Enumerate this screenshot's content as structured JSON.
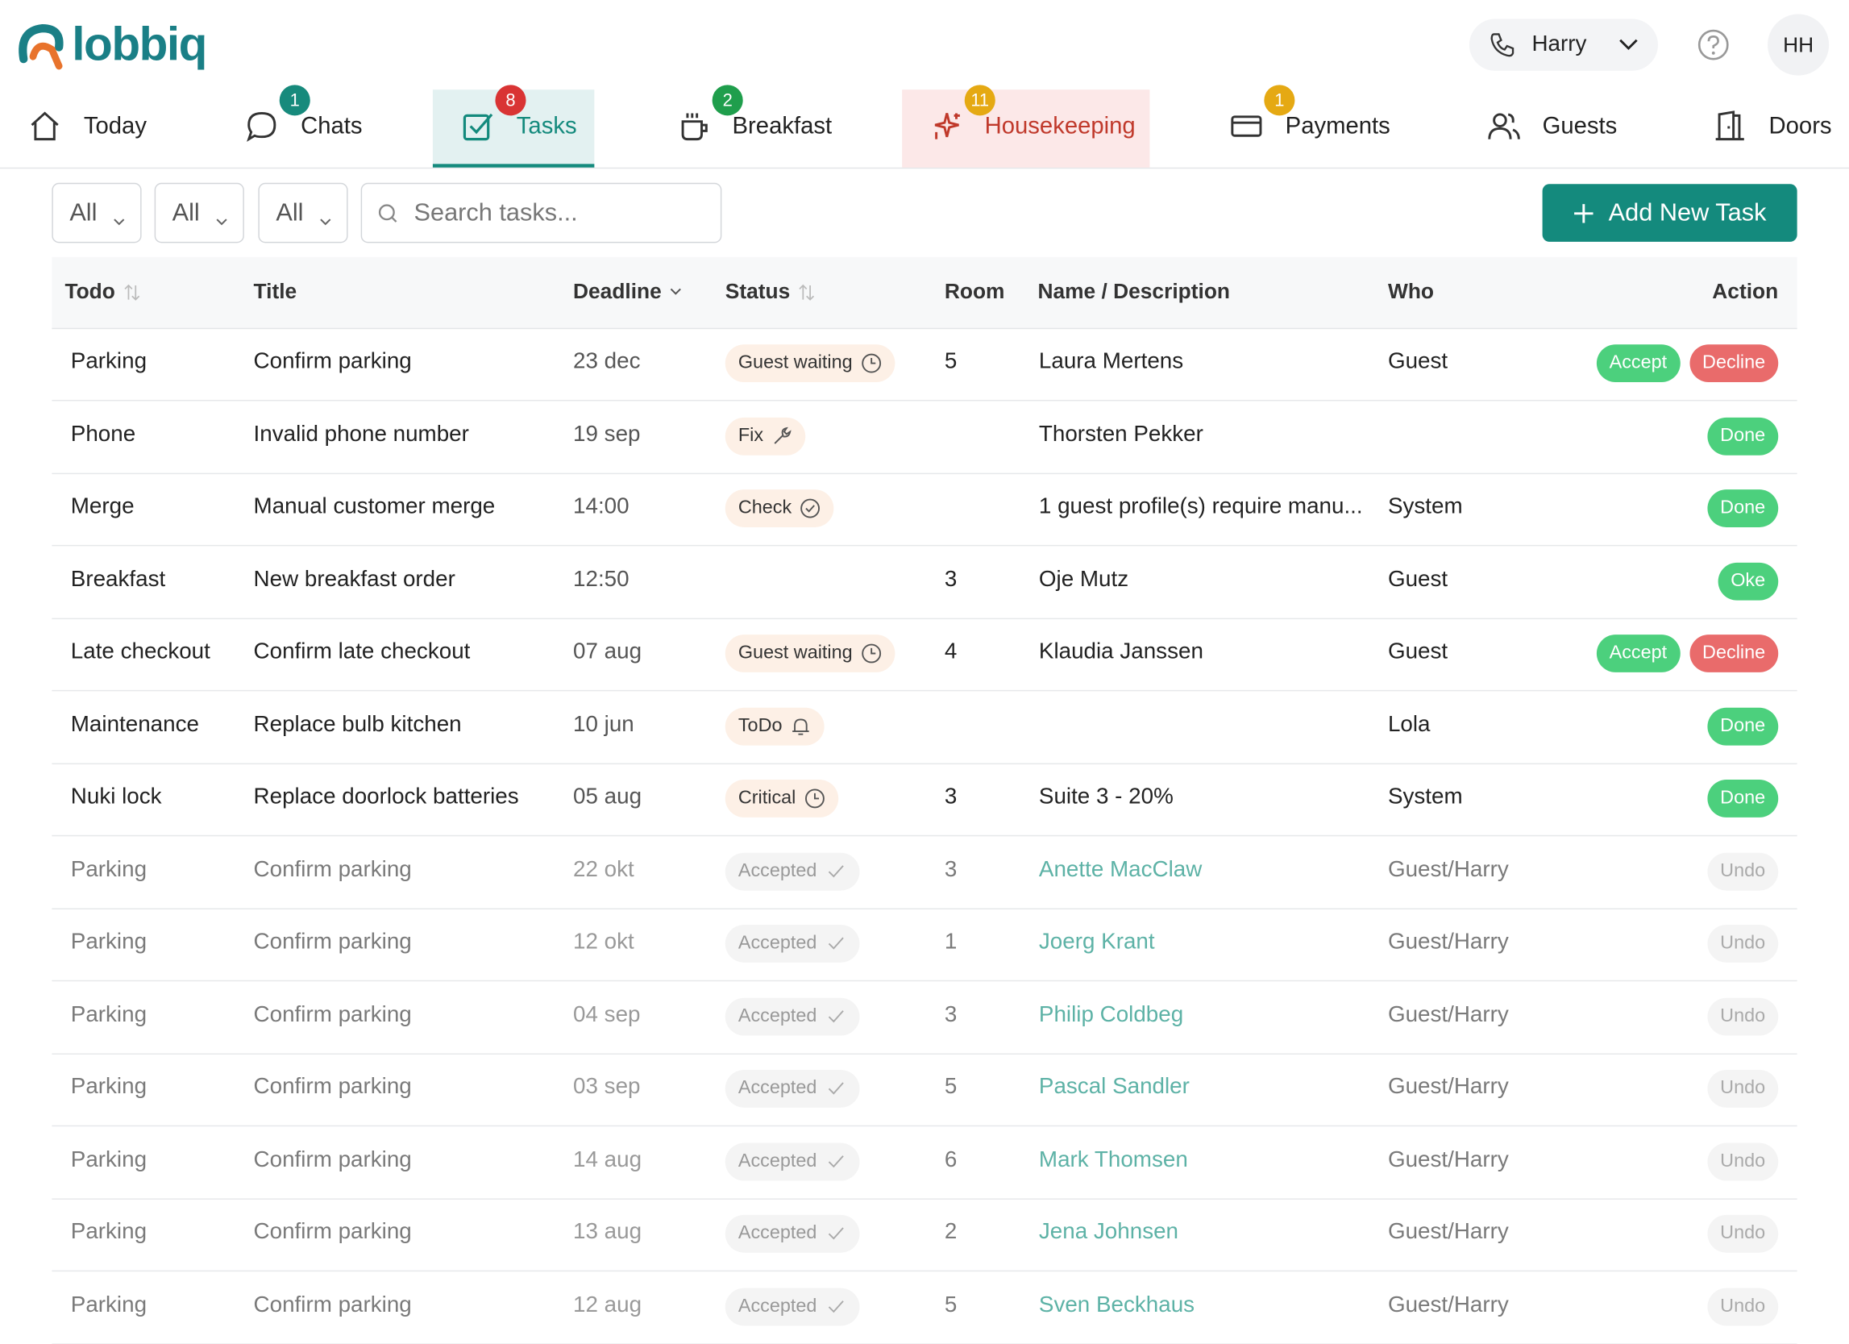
{
  "header": {
    "logo": "lobbiq",
    "user": "Harry",
    "initials": "HH"
  },
  "nav": {
    "tabs": [
      {
        "label": "Today",
        "badge": null
      },
      {
        "label": "Chats",
        "badge": "1",
        "badge_color": "#178a7c"
      },
      {
        "label": "Tasks",
        "badge": "8",
        "badge_color": "#d93434",
        "active": true
      },
      {
        "label": "Breakfast",
        "badge": "2",
        "badge_color": "#1f9e4c"
      },
      {
        "label": "Housekeeping",
        "badge": "11",
        "badge_color": "#e5a913",
        "highlight": true
      },
      {
        "label": "Payments",
        "badge": "1",
        "badge_color": "#e5a913"
      },
      {
        "label": "Guests",
        "badge": null
      },
      {
        "label": "Doors",
        "badge": null
      }
    ]
  },
  "filters": [
    "All",
    "All",
    "All"
  ],
  "search": {
    "placeholder": "Search tasks..."
  },
  "add_button": "Add New Task",
  "table": {
    "columns": [
      "Todo",
      "Title",
      "Deadline",
      "Status",
      "Room",
      "Name / Description",
      "Who",
      "Action"
    ],
    "rows": [
      {
        "cells": [
          "Parking",
          "Confirm parking",
          "23 dec",
          "Guest waiting",
          "5",
          "Laura Mertens",
          "Guest"
        ],
        "status_icon": "clock",
        "actions": [
          {
            "label": "Accept",
            "color": "#4cd07d"
          },
          {
            "label": "Decline",
            "color": "#e96b6b"
          }
        ]
      },
      {
        "cells": [
          "Phone",
          "Invalid phone number",
          "19 sep",
          "Fix",
          "",
          "Thorsten Pekker",
          ""
        ],
        "status_icon": "wrench",
        "actions": [
          {
            "label": "Done",
            "color": "#4cd07d"
          }
        ]
      },
      {
        "cells": [
          "Merge",
          "Manual customer merge",
          "14:00",
          "Check",
          "",
          "1 guest profile(s) require manu...",
          "System"
        ],
        "status_icon": "check-circle",
        "actions": [
          {
            "label": "Done",
            "color": "#4cd07d"
          }
        ]
      },
      {
        "cells": [
          "Breakfast",
          "New breakfast order",
          "12:50",
          "",
          "3",
          "Oje Mutz",
          "Guest"
        ],
        "status_icon": null,
        "actions": [
          {
            "label": "Oke",
            "color": "#4cd07d"
          }
        ]
      },
      {
        "cells": [
          "Late checkout",
          "Confirm late checkout",
          "07 aug",
          "Guest waiting",
          "4",
          "Klaudia Janssen",
          "Guest"
        ],
        "status_icon": "clock",
        "actions": [
          {
            "label": "Accept",
            "color": "#4cd07d"
          },
          {
            "label": "Decline",
            "color": "#e96b6b"
          }
        ]
      },
      {
        "cells": [
          "Maintenance",
          "Replace bulb kitchen",
          "10 jun",
          "ToDo",
          "",
          "",
          "Lola"
        ],
        "status_icon": "bell",
        "actions": [
          {
            "label": "Done",
            "color": "#4cd07d"
          }
        ]
      },
      {
        "cells": [
          "Nuki lock",
          "Replace doorlock batteries",
          "05 aug",
          "Critical",
          "3",
          "Suite 3 - 20%",
          "System"
        ],
        "status_icon": "clock",
        "actions": [
          {
            "label": "Done",
            "color": "#4cd07d"
          }
        ]
      },
      {
        "cells": [
          "Parking",
          "Confirm parking",
          "22 okt",
          "Accepted",
          "3",
          "Anette MacClaw",
          "Guest/Harry"
        ],
        "status_icon": "check",
        "muted": true,
        "actions": [
          {
            "label": "Undo",
            "color": null
          }
        ]
      },
      {
        "cells": [
          "Parking",
          "Confirm parking",
          "12 okt",
          "Accepted",
          "1",
          "Joerg Krant",
          "Guest/Harry"
        ],
        "status_icon": "check",
        "muted": true,
        "actions": [
          {
            "label": "Undo",
            "color": null
          }
        ]
      },
      {
        "cells": [
          "Parking",
          "Confirm parking",
          "04 sep",
          "Accepted",
          "3",
          "Philip Coldbeg",
          "Guest/Harry"
        ],
        "status_icon": "check",
        "muted": true,
        "actions": [
          {
            "label": "Undo",
            "color": null
          }
        ]
      },
      {
        "cells": [
          "Parking",
          "Confirm parking",
          "03 sep",
          "Accepted",
          "5",
          "Pascal Sandler",
          "Guest/Harry"
        ],
        "status_icon": "check",
        "muted": true,
        "actions": [
          {
            "label": "Undo",
            "color": null
          }
        ]
      },
      {
        "cells": [
          "Parking",
          "Confirm parking",
          "14 aug",
          "Accepted",
          "6",
          "Mark Thomsen",
          "Guest/Harry"
        ],
        "status_icon": "check",
        "muted": true,
        "actions": [
          {
            "label": "Undo",
            "color": null
          }
        ]
      },
      {
        "cells": [
          "Parking",
          "Confirm parking",
          "13 aug",
          "Accepted",
          "2",
          "Jena Johnsen",
          "Guest/Harry"
        ],
        "status_icon": "check",
        "muted": true,
        "actions": [
          {
            "label": "Undo",
            "color": null
          }
        ]
      },
      {
        "cells": [
          "Parking",
          "Confirm parking",
          "12 aug",
          "Accepted",
          "5",
          "Sven Beckhaus",
          "Guest/Harry"
        ],
        "status_icon": "check",
        "muted": true,
        "actions": [
          {
            "label": "Undo",
            "color": null
          }
        ]
      }
    ]
  }
}
